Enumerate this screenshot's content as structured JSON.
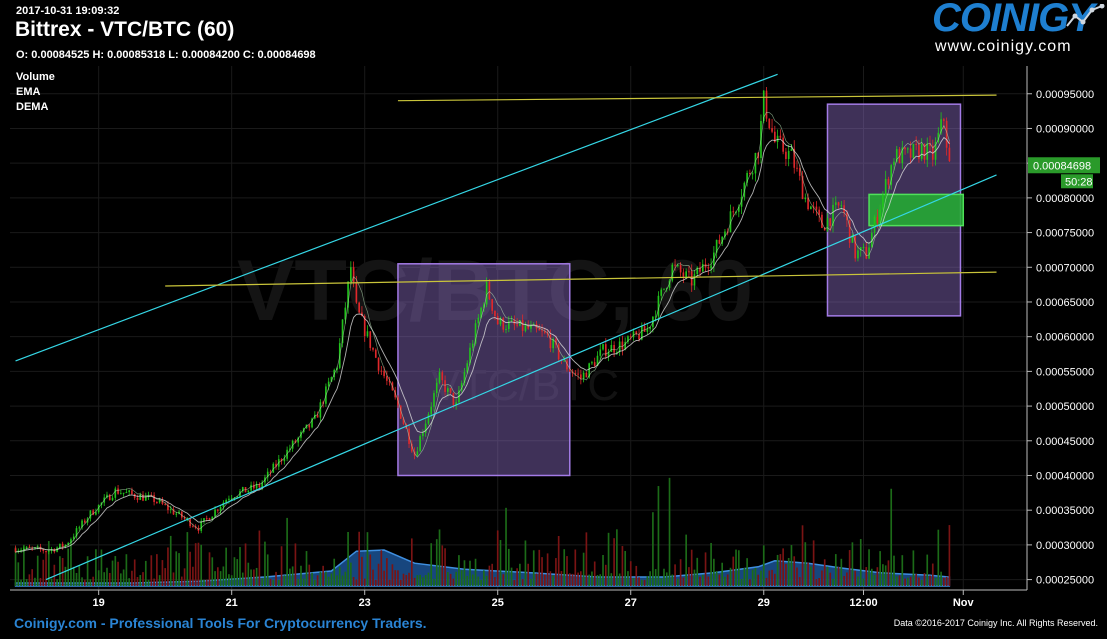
{
  "header": {
    "timestamp": "2017-10-31 19:09:32",
    "title": "Bittrex - VTC/BTC (60)",
    "ohlc": "O: 0.00084525 H: 0.00085318 L: 0.00084200 C: 0.00084698"
  },
  "logo": {
    "brand": "COINIGY",
    "url": "www.coinigy.com"
  },
  "indicators": [
    "Volume",
    "EMA",
    "DEMA"
  ],
  "watermark": {
    "main": "VTC/BTC, 60",
    "sub": "VTC/BTC"
  },
  "price_badge": {
    "price": "0.00084698",
    "countdown": "50:28"
  },
  "footer": {
    "left": "Coinigy.com - Professional Tools For Cryptocurrency Traders.",
    "right": "Data ©2016-2017 Coinigy Inc. All Rights Reserved."
  },
  "colors": {
    "up": "#22c41c",
    "down": "#e0282b",
    "volume_area": "#1f5ea8",
    "trendline_cyan": "#35d7e6",
    "trendline_yellow": "#c9c43a",
    "box_purple": "#8c6cc4",
    "box_green": "#23b031",
    "background": "#000000"
  },
  "chart_data": {
    "type": "candlestick",
    "timeframe_minutes": 60,
    "y_axis": {
      "range": [
        0.000235,
        0.00099
      ],
      "ticks": [
        "0.00025000",
        "0.00030000",
        "0.00035000",
        "0.00040000",
        "0.00045000",
        "0.00050000",
        "0.00055000",
        "0.00060000",
        "0.00065000",
        "0.00070000",
        "0.00075000",
        "0.00080000",
        "0.00085000",
        "0.00090000",
        "0.00095000"
      ]
    },
    "x_axis": {
      "ticks": [
        "19",
        "21",
        "23",
        "25",
        "27",
        "29",
        "12:00",
        "Nov"
      ]
    },
    "price_path": [
      {
        "x": "2017-10-17 18:00",
        "y": 0.000295
      },
      {
        "x": "2017-10-18 06:00",
        "y": 0.000292
      },
      {
        "x": "2017-10-18 12:00",
        "y": 0.0003
      },
      {
        "x": "2017-10-18 21:00",
        "y": 0.000345
      },
      {
        "x": "2017-10-19 06:00",
        "y": 0.000378
      },
      {
        "x": "2017-10-19 20:00",
        "y": 0.000365
      },
      {
        "x": "2017-10-20 12:00",
        "y": 0.000325
      },
      {
        "x": "2017-10-20 23:00",
        "y": 0.00037
      },
      {
        "x": "2017-10-21 10:00",
        "y": 0.000385
      },
      {
        "x": "2017-10-21 20:00",
        "y": 0.000435
      },
      {
        "x": "2017-10-22 06:00",
        "y": 0.00048
      },
      {
        "x": "2017-10-22 14:00",
        "y": 0.00056
      },
      {
        "x": "2017-10-22 19:00",
        "y": 0.0007
      },
      {
        "x": "2017-10-22 21:00",
        "y": 0.00064
      },
      {
        "x": "2017-10-23 05:00",
        "y": 0.00056
      },
      {
        "x": "2017-10-23 12:00",
        "y": 0.0005
      },
      {
        "x": "2017-10-23 18:00",
        "y": 0.00043
      },
      {
        "x": "2017-10-24 03:00",
        "y": 0.00054
      },
      {
        "x": "2017-10-24 09:00",
        "y": 0.0005
      },
      {
        "x": "2017-10-24 14:00",
        "y": 0.00058
      },
      {
        "x": "2017-10-24 20:00",
        "y": 0.00067
      },
      {
        "x": "2017-10-25 00:00",
        "y": 0.00062
      },
      {
        "x": "2017-10-25 06:00",
        "y": 0.000615
      },
      {
        "x": "2017-10-25 12:00",
        "y": 0.00061
      },
      {
        "x": "2017-10-25 18:00",
        "y": 0.0006
      },
      {
        "x": "2017-10-26 00:00",
        "y": 0.00056
      },
      {
        "x": "2017-10-26 06:00",
        "y": 0.00054
      },
      {
        "x": "2017-10-26 14:00",
        "y": 0.00058
      },
      {
        "x": "2017-10-26 22:00",
        "y": 0.00059
      },
      {
        "x": "2017-10-27 06:00",
        "y": 0.00061
      },
      {
        "x": "2017-10-27 15:00",
        "y": 0.0007
      },
      {
        "x": "2017-10-27 22:00",
        "y": 0.00068
      },
      {
        "x": "2017-10-28 06:00",
        "y": 0.00072
      },
      {
        "x": "2017-10-28 14:00",
        "y": 0.00079
      },
      {
        "x": "2017-10-28 22:00",
        "y": 0.00087
      },
      {
        "x": "2017-10-29 00:00",
        "y": 0.00094
      },
      {
        "x": "2017-10-29 04:00",
        "y": 0.00088
      },
      {
        "x": "2017-10-29 10:00",
        "y": 0.00086
      },
      {
        "x": "2017-10-29 15:00",
        "y": 0.0008
      },
      {
        "x": "2017-10-29 21:00",
        "y": 0.00076
      },
      {
        "x": "2017-10-30 04:00",
        "y": 0.00079
      },
      {
        "x": "2017-10-30 09:00",
        "y": 0.00072
      },
      {
        "x": "2017-10-30 13:00",
        "y": 0.00072
      },
      {
        "x": "2017-10-30 18:00",
        "y": 0.00079
      },
      {
        "x": "2017-10-30 23:00",
        "y": 0.00086
      },
      {
        "x": "2017-10-31 04:00",
        "y": 0.00086
      },
      {
        "x": "2017-10-31 09:00",
        "y": 0.00087
      },
      {
        "x": "2017-10-31 13:00",
        "y": 0.00086
      },
      {
        "x": "2017-10-31 17:00",
        "y": 0.000915
      },
      {
        "x": "2017-10-31 19:00",
        "y": 0.000847
      }
    ],
    "volume_area_path": [
      {
        "x": "2017-10-17 18:00",
        "v": 0.05
      },
      {
        "x": "2017-10-19 12:00",
        "v": 0.05
      },
      {
        "x": "2017-10-20 12:00",
        "v": 0.08
      },
      {
        "x": "2017-10-21 12:00",
        "v": 0.15
      },
      {
        "x": "2017-10-22 12:00",
        "v": 0.25
      },
      {
        "x": "2017-10-22 21:00",
        "v": 0.58
      },
      {
        "x": "2017-10-23 07:00",
        "v": 0.6
      },
      {
        "x": "2017-10-23 18:00",
        "v": 0.38
      },
      {
        "x": "2017-10-24 12:00",
        "v": 0.28
      },
      {
        "x": "2017-10-25 12:00",
        "v": 0.22
      },
      {
        "x": "2017-10-26 12:00",
        "v": 0.15
      },
      {
        "x": "2017-10-27 12:00",
        "v": 0.15
      },
      {
        "x": "2017-10-28 06:00",
        "v": 0.22
      },
      {
        "x": "2017-10-28 22:00",
        "v": 0.32
      },
      {
        "x": "2017-10-29 04:00",
        "v": 0.42
      },
      {
        "x": "2017-10-29 16:00",
        "v": 0.38
      },
      {
        "x": "2017-10-30 04:00",
        "v": 0.3
      },
      {
        "x": "2017-10-30 18:00",
        "v": 0.22
      },
      {
        "x": "2017-10-31 12:00",
        "v": 0.18
      },
      {
        "x": "2017-10-31 19:00",
        "v": 0.15
      }
    ],
    "drawings": {
      "trendlines": [
        {
          "color": "cyan",
          "points": [
            {
              "x": "2017-10-17 18:00",
              "y": 0.000565
            },
            {
              "x": "2017-10-29 05:00",
              "y": 0.000978
            }
          ]
        },
        {
          "color": "cyan",
          "points": [
            {
              "x": "2017-10-18 05:00",
              "y": 0.00025
            },
            {
              "x": "2017-11-01 12:00",
              "y": 0.000833
            }
          ]
        },
        {
          "color": "yellow",
          "points": [
            {
              "x": "2017-10-20 00:00",
              "y": 0.000673
            },
            {
              "x": "2017-11-01 12:00",
              "y": 0.000693
            }
          ]
        },
        {
          "color": "yellow",
          "points": [
            {
              "x": "2017-10-23 12:00",
              "y": 0.00094
            },
            {
              "x": "2017-11-01 12:00",
              "y": 0.000948
            }
          ]
        }
      ],
      "boxes": [
        {
          "color": "purple",
          "x0": "2017-10-23 12:00",
          "x1": "2017-10-26 02:00",
          "y0": 0.0004,
          "y1": 0.000705
        },
        {
          "color": "purple",
          "x0": "2017-10-29 23:00",
          "x1": "2017-10-31 23:00",
          "y0": 0.00063,
          "y1": 0.000935
        },
        {
          "color": "green",
          "x0": "2017-10-30 14:00",
          "x1": "2017-11-01 00:00",
          "y0": 0.00076,
          "y1": 0.000805
        }
      ]
    }
  }
}
